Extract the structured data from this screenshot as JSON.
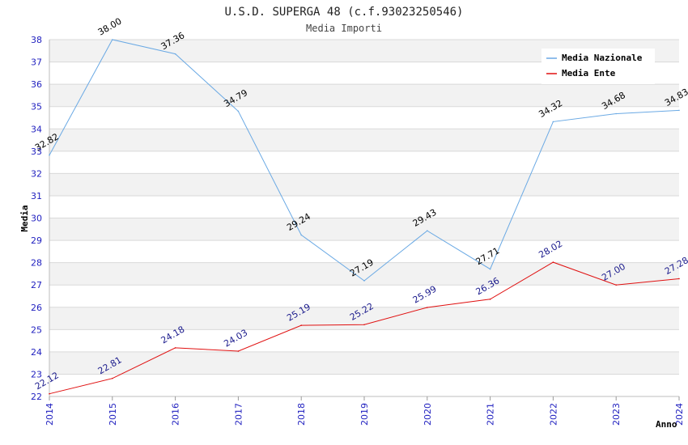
{
  "title": "U.S.D. SUPERGA 48 (c.f.93023250546)",
  "subtitle": "Media Importi",
  "colors": {
    "nazionale": "#6aa9e4",
    "ente": "#e01010",
    "band": "#f2f2f2",
    "grid": "#d9d9d9",
    "tick": "#1f1fbf"
  },
  "chart_data": {
    "type": "line",
    "title": "U.S.D. SUPERGA 48 (c.f.93023250546)",
    "subtitle": "Media Importi",
    "xlabel": "Anno",
    "ylabel": "Media",
    "x": [
      "2014",
      "2015",
      "2016",
      "2017",
      "2018",
      "2019",
      "2020",
      "2021",
      "2022",
      "2023",
      "2024"
    ],
    "ylim": [
      22,
      38
    ],
    "yticks": [
      "22",
      "23",
      "24",
      "25",
      "26",
      "27",
      "28",
      "29",
      "30",
      "31",
      "32",
      "33",
      "34",
      "35",
      "36",
      "37",
      "38"
    ],
    "grid": true,
    "legend_position": "top-right",
    "series": [
      {
        "name": "Media Nazionale",
        "values": [
          32.82,
          38.0,
          37.36,
          34.79,
          29.24,
          27.19,
          29.43,
          27.71,
          34.32,
          34.68,
          34.83
        ],
        "labels": [
          "32.82",
          "38.00",
          "37.36",
          "34.79",
          "29.24",
          "27.19",
          "29.43",
          "27.71",
          "34.32",
          "34.68",
          "34.83"
        ]
      },
      {
        "name": "Media Ente",
        "values": [
          22.12,
          22.81,
          24.18,
          24.03,
          25.19,
          25.22,
          25.99,
          26.36,
          28.02,
          27.0,
          27.28
        ],
        "labels": [
          "22.12",
          "22.81",
          "24.18",
          "24.03",
          "25.19",
          "25.22",
          "25.99",
          "26.36",
          "28.02",
          "27.00",
          "27.28"
        ]
      }
    ]
  }
}
